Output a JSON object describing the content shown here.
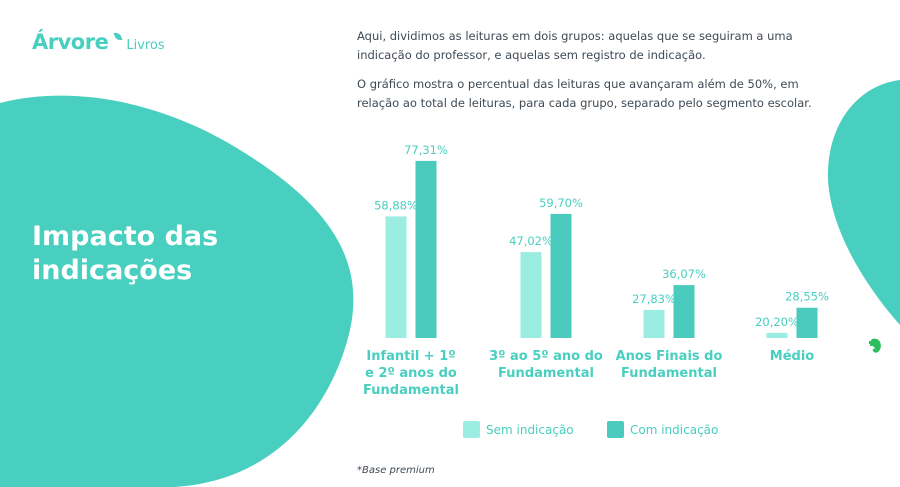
{
  "brand": {
    "name": "Árvore",
    "sub": "Livros"
  },
  "heading": "Impacto das indicações",
  "description": [
    "Aqui, dividimos as leituras em dois grupos: aquelas que se seguiram a uma indicação do professor, e aquelas sem registro de indicação.",
    "O gráfico mostra o percentual das leituras que avançaram além de 50%, em relação ao total de leituras, para cada grupo, separado pelo segmento escolar."
  ],
  "footnote": "*Base premium",
  "colors": {
    "teal": "#48cfbf",
    "light": "#9bece1",
    "dark": "#4acbbd",
    "text": "#3f4a54"
  },
  "icons": {
    "side": "evernote-icon"
  },
  "chart_data": {
    "type": "bar",
    "categories": [
      [
        "Infantil + 1º",
        "e 2º anos do",
        "Fundamental"
      ],
      [
        "3º ao 5º ano do",
        "Fundamental"
      ],
      [
        "Anos Finais do",
        "Fundamental"
      ],
      [
        "Médio"
      ]
    ],
    "series": [
      {
        "name": "Sem indicação",
        "values": [
          58.88,
          47.02,
          27.83,
          20.2
        ],
        "labels": [
          "58,88%",
          "47,02%",
          "27,83%",
          "20,20%"
        ],
        "color": "#9bece1"
      },
      {
        "name": "Com indicação",
        "values": [
          77.31,
          59.7,
          36.07,
          28.55
        ],
        "labels": [
          "77,31%",
          "59,70%",
          "36,07%",
          "28,55%"
        ],
        "color": "#4acbbd"
      }
    ],
    "ylim": [
      18.5,
      79.6
    ],
    "grid": false,
    "legend": "bottom"
  }
}
